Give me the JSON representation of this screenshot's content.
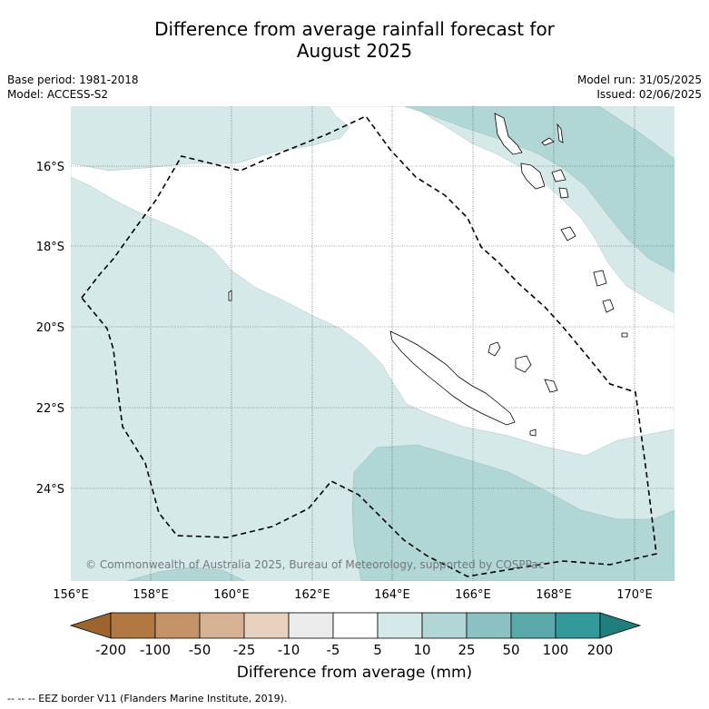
{
  "title_line1": "Difference from average rainfall forecast for",
  "title_line2": "August 2025",
  "base_period": "Base period: 1981-2018",
  "model": "Model: ACCESS-S2",
  "model_run": "Model run: 31/05/2025",
  "issued": "Issued: 02/06/2025",
  "copyright": "© Commonwealth of Australia 2025, Bureau of Meteorology, supported by COSPPac",
  "colorbar_title": "Difference from average (mm)",
  "footer_note": "--  --  -- EEZ border V11 (Flanders Marine Institute, 2019).",
  "lat_labels": [
    "16°S",
    "18°S",
    "20°S",
    "22°S",
    "24°S"
  ],
  "lon_labels": [
    "156°E",
    "158°E",
    "160°E",
    "162°E",
    "164°E",
    "166°E",
    "168°E",
    "170°E"
  ],
  "colorbar": {
    "ticks": [
      "-200",
      "-100",
      "-50",
      "-25",
      "-10",
      "-5",
      "5",
      "10",
      "25",
      "50",
      "100",
      "200"
    ],
    "colors": [
      "#9c6530",
      "#b07840",
      "#c49468",
      "#d6b294",
      "#e8d2bf",
      "#ebebeb",
      "#ffffff",
      "#d5e9e8",
      "#b0d6d6",
      "#8bc1c2",
      "#5aa9aa",
      "#34999a",
      "#207e7e"
    ]
  },
  "colors": {
    "light_teal": "#d5e9e8",
    "mid_teal": "#b0d6d6",
    "eez": "#000000"
  }
}
